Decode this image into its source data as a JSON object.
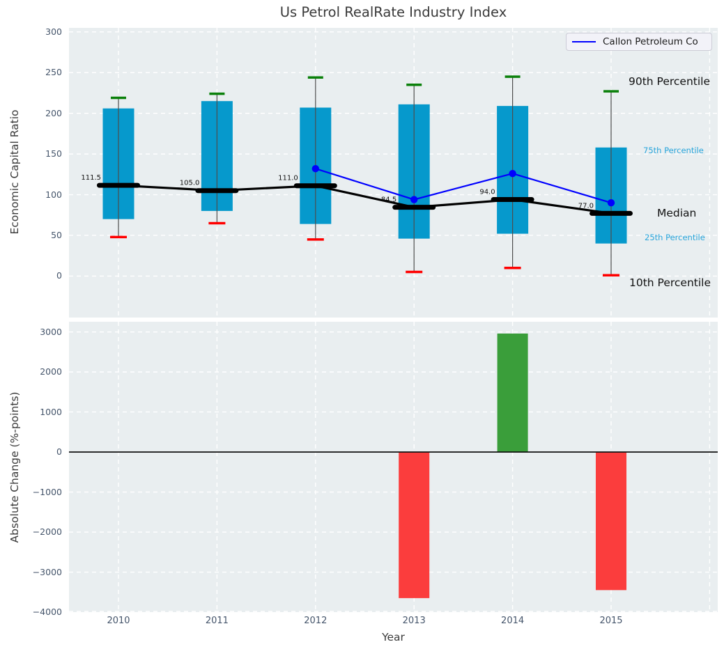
{
  "title": "Us Petrol RealRate Industry Index",
  "legend": {
    "label": "Callon Petroleum Co",
    "line_color": "#0000ff"
  },
  "colors": {
    "plot_bg": "#e9eef0",
    "grid": "#ffffff",
    "tick": "#44546a",
    "box": "#0699cc",
    "whisker": "#4d4d4d",
    "cap_high": "#0a800a",
    "cap_low": "#ff0000",
    "median": "#000000",
    "series_line": "#0000ff",
    "bar_positive": "#3a9e3a",
    "bar_negative": "#fb3d3d",
    "cyan_label": "#29a5db"
  },
  "chart_data": [
    {
      "type": "box",
      "title": "Us Petrol RealRate Industry Index",
      "ylabel": "Economic Capital Ratio",
      "ylim": [
        -51,
        305
      ],
      "yticks": [
        {
          "value": 300,
          "label": "300"
        },
        {
          "value": 250,
          "label": "250"
        },
        {
          "value": 200,
          "label": "200"
        },
        {
          "value": 150,
          "label": "150"
        },
        {
          "value": 100,
          "label": "100"
        },
        {
          "value": 50,
          "label": "50"
        },
        {
          "value": 0,
          "label": "0"
        }
      ],
      "categories": [
        "2010",
        "2011",
        "2012",
        "2013",
        "2014",
        "2015"
      ],
      "boxes": [
        {
          "year": "2010",
          "p10": 48,
          "p25": 70,
          "median": 111.5,
          "p75": 206,
          "p90": 219,
          "median_label": "111.5"
        },
        {
          "year": "2011",
          "p10": 65,
          "p25": 80,
          "median": 105.0,
          "p75": 215,
          "p90": 224,
          "median_label": "105.0"
        },
        {
          "year": "2012",
          "p10": 45,
          "p25": 64,
          "median": 111.0,
          "p75": 207,
          "p90": 244,
          "median_label": "111.0"
        },
        {
          "year": "2013",
          "p10": 5,
          "p25": 46,
          "median": 84.5,
          "p75": 211,
          "p90": 235,
          "median_label": "84.5"
        },
        {
          "year": "2014",
          "p10": 10,
          "p25": 52,
          "median": 94.0,
          "p75": 209,
          "p90": 245,
          "median_label": "94.0"
        },
        {
          "year": "2015",
          "p10": 1,
          "p25": 40,
          "median": 77.0,
          "p75": 158,
          "p90": 227,
          "median_label": "77.0"
        }
      ],
      "series": [
        {
          "name": "Callon Petroleum Co",
          "x": [
            "2012",
            "2013",
            "2014",
            "2015"
          ],
          "y": [
            132,
            94,
            126,
            90
          ]
        }
      ],
      "percentile_labels": [
        {
          "id": "p90",
          "text": "90th Percentile",
          "size": "large"
        },
        {
          "id": "p75",
          "text": "75th Percentile",
          "size": "small"
        },
        {
          "id": "median",
          "text": "Median",
          "size": "large"
        },
        {
          "id": "p25",
          "text": "25th Percentile",
          "size": "small"
        },
        {
          "id": "p10",
          "text": "10th Percentile",
          "size": "large"
        }
      ],
      "legend_position": "upper right",
      "grid": true
    },
    {
      "type": "bar",
      "ylabel": "Absolute Change (%-points)",
      "xlabel": "Year",
      "ylim": [
        -4000,
        3255
      ],
      "yticks": [
        {
          "value": 3000,
          "label": "3000"
        },
        {
          "value": 2000,
          "label": "2000"
        },
        {
          "value": 1000,
          "label": "1000"
        },
        {
          "value": 0,
          "label": "0"
        },
        {
          "value": -1000,
          "label": "−1000"
        },
        {
          "value": -2000,
          "label": "−2000"
        },
        {
          "value": -3000,
          "label": "−3000"
        },
        {
          "value": -4000,
          "label": "−4000"
        }
      ],
      "categories": [
        "2010",
        "2011",
        "2012",
        "2013",
        "2014",
        "2015"
      ],
      "values": [
        null,
        null,
        null,
        -3650,
        2960,
        -3450
      ],
      "grid": true
    }
  ]
}
